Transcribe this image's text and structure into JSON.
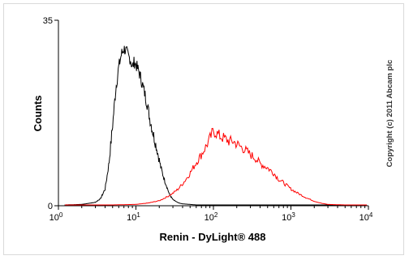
{
  "chart_data": {
    "type": "line",
    "title": "",
    "xlabel": "Renin - DyLight® 488",
    "ylabel": "Counts",
    "x_scale": "log",
    "xlim": [
      1,
      10000
    ],
    "ylim": [
      0,
      35
    ],
    "y_ticks": [
      {
        "value": 0,
        "label": "0"
      },
      {
        "value": 35,
        "label": "35"
      }
    ],
    "x_ticks": [
      {
        "value": 1,
        "base": "10",
        "exp": "0"
      },
      {
        "value": 10,
        "base": "10",
        "exp": "1"
      },
      {
        "value": 100,
        "base": "10",
        "exp": "2"
      },
      {
        "value": 1000,
        "base": "10",
        "exp": "3"
      },
      {
        "value": 10000,
        "base": "10",
        "exp": "4"
      }
    ],
    "grid": false,
    "legend": "none",
    "annotation": "Copyright (c) 2011 Abcam plc",
    "series": [
      {
        "color": "#000000",
        "x": [
          1.2,
          2,
          3,
          3.5,
          4,
          4.5,
          5,
          5.5,
          6,
          6.5,
          7,
          7.5,
          8,
          8.5,
          9,
          9.5,
          10,
          11,
          12,
          13,
          14,
          15,
          17,
          19,
          21,
          23,
          25,
          27,
          30,
          35,
          40,
          50,
          60
        ],
        "y": [
          0,
          0.1,
          0.5,
          1.2,
          3,
          8,
          15,
          22,
          26,
          28.5,
          29.5,
          29,
          28,
          27.5,
          26,
          27,
          26.5,
          25,
          23,
          21,
          19,
          16.5,
          13,
          10,
          7,
          5,
          3.5,
          2,
          1,
          0.4,
          0.2,
          0.1,
          0
        ]
      },
      {
        "color": "#ff0000",
        "x": [
          5,
          10,
          15,
          20,
          25,
          30,
          35,
          40,
          45,
          50,
          60,
          70,
          80,
          90,
          100,
          110,
          120,
          140,
          160,
          180,
          200,
          250,
          300,
          350,
          400,
          500,
          600,
          700,
          800,
          1000,
          1300,
          1600,
          2000,
          2500,
          3000,
          5000
        ],
        "y": [
          0,
          0.1,
          0.4,
          0.8,
          1.5,
          2.2,
          3,
          4,
          5,
          6,
          8,
          9.5,
          11,
          12.5,
          14,
          13.5,
          13,
          12.5,
          12,
          12,
          11.5,
          10.5,
          9.5,
          8.8,
          7.8,
          7,
          6,
          4.8,
          4.2,
          3,
          2,
          1.3,
          0.7,
          0.3,
          0.1,
          0
        ]
      }
    ]
  }
}
